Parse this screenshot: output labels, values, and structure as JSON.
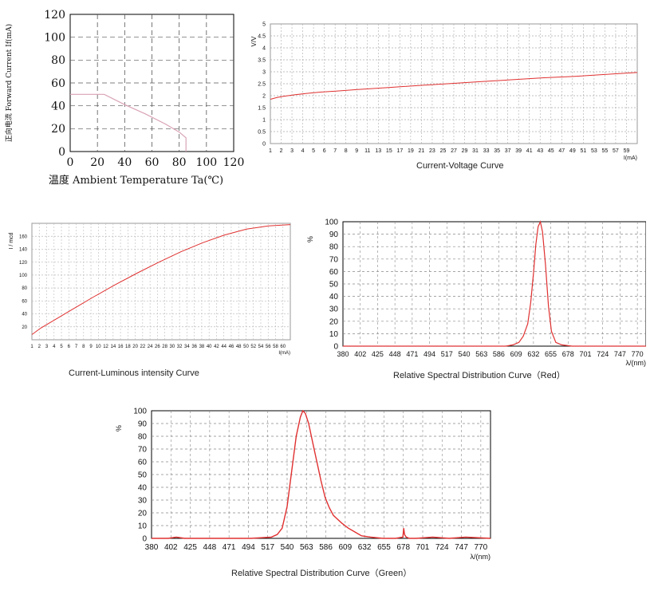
{
  "chart_data": [
    {
      "id": "derating",
      "type": "line",
      "title": "",
      "xlabel": "温度 Ambient Temperature Ta(℃)",
      "ylabel": "正向电流 Forward Current If(mA)",
      "xlim": [
        0,
        120
      ],
      "ylim": [
        0,
        120
      ],
      "xticks": [
        "0",
        "20",
        "40",
        "60",
        "80",
        "100",
        "120"
      ],
      "yticks": [
        "0",
        "20",
        "40",
        "60",
        "80",
        "100",
        "120"
      ],
      "grid": "dashed",
      "line_color": "#d9a3b5",
      "x": [
        0,
        25,
        40,
        55,
        70,
        80,
        85,
        85
      ],
      "y": [
        50,
        50,
        41,
        33,
        24,
        17,
        12,
        0
      ]
    },
    {
      "id": "iv",
      "type": "line",
      "title": "Current-Voltage Curve",
      "xlabel": "I(mA)",
      "ylabel": "V/V",
      "xlim": [
        1,
        60
      ],
      "ylim": [
        0,
        5
      ],
      "xticks": [
        "1",
        "2",
        "3",
        "4",
        "5",
        "6",
        "7",
        "8",
        "9",
        "11",
        "13",
        "15",
        "17",
        "19",
        "21",
        "23",
        "25",
        "27",
        "29",
        "31",
        "33",
        "35",
        "37",
        "39",
        "41",
        "43",
        "45",
        "47",
        "49",
        "51",
        "53",
        "55",
        "57",
        "59"
      ],
      "yticks": [
        "0",
        "0.5",
        "1",
        "1.5",
        "2",
        "2.5",
        "3",
        "3.5",
        "4",
        "4.5",
        "5"
      ],
      "grid": "dashed",
      "line_color": "#e03030",
      "x": [
        1,
        2,
        3,
        5,
        7,
        9,
        12,
        15,
        20,
        25,
        30,
        35,
        40,
        45,
        50,
        55,
        60
      ],
      "y": [
        1.85,
        1.92,
        1.97,
        2.04,
        2.1,
        2.15,
        2.2,
        2.26,
        2.34,
        2.43,
        2.51,
        2.59,
        2.67,
        2.75,
        2.81,
        2.89,
        2.97
      ]
    },
    {
      "id": "iiv",
      "type": "line",
      "title": "Current-Luminous intensity Curve",
      "xlabel": "I(mA)",
      "ylabel": "I / mcd",
      "xlim": [
        1,
        60
      ],
      "ylim": [
        0,
        180
      ],
      "xticks": [
        "1",
        "2",
        "3",
        "4",
        "5",
        "6",
        "7",
        "8",
        "9",
        "10",
        "12",
        "14",
        "16",
        "18",
        "20",
        "22",
        "24",
        "26",
        "28",
        "30",
        "32",
        "34",
        "36",
        "38",
        "40",
        "42",
        "44",
        "46",
        "48",
        "50",
        "52",
        "54",
        "56",
        "58",
        "60"
      ],
      "yticks": [
        "20",
        "40",
        "60",
        "80",
        "100",
        "120",
        "140",
        "160"
      ],
      "grid": "dashed",
      "line_color": "#e03030",
      "x": [
        1,
        3,
        6,
        10,
        15,
        20,
        25,
        30,
        35,
        40,
        45,
        50,
        55,
        60
      ],
      "y": [
        8,
        18,
        30,
        46,
        66,
        85,
        103,
        120,
        136,
        150,
        162,
        171,
        176,
        178
      ]
    },
    {
      "id": "spec_red",
      "type": "line",
      "title": "Relative Spectral Distribution Curve（Red）",
      "xlabel": "λ/(nm)",
      "ylabel": "%",
      "xlim": [
        380,
        790
      ],
      "ylim": [
        0,
        100
      ],
      "xticks": [
        "380",
        "402",
        "425",
        "448",
        "471",
        "494",
        "517",
        "540",
        "563",
        "586",
        "609",
        "632",
        "655",
        "678",
        "701",
        "724",
        "747",
        "770"
      ],
      "yticks": [
        "0",
        "10",
        "20",
        "30",
        "40",
        "50",
        "60",
        "70",
        "80",
        "90",
        "100"
      ],
      "grid": "dashed",
      "line_color": "#e03030",
      "x": [
        380,
        600,
        610,
        618,
        624,
        630,
        634,
        638,
        641,
        644,
        647,
        650,
        654,
        658,
        662,
        668,
        676,
        690,
        790
      ],
      "y": [
        0,
        0,
        1,
        3,
        8,
        18,
        35,
        60,
        82,
        96,
        100,
        92,
        65,
        32,
        12,
        3,
        1,
        0,
        0
      ]
    },
    {
      "id": "spec_green",
      "type": "line",
      "title": "Relative Spectral Distribution Curve（Green）",
      "xlabel": "λ/(nm)",
      "ylabel": "%",
      "xlim": [
        380,
        790
      ],
      "ylim": [
        0,
        100
      ],
      "xticks": [
        "380",
        "402",
        "425",
        "448",
        "471",
        "494",
        "517",
        "540",
        "563",
        "586",
        "609",
        "632",
        "655",
        "678",
        "701",
        "724",
        "747",
        "770"
      ],
      "yticks": [
        "0",
        "10",
        "20",
        "30",
        "40",
        "50",
        "60",
        "70",
        "80",
        "90",
        "100"
      ],
      "grid": "dashed",
      "line_color": "#e03030",
      "x": [
        380,
        400,
        410,
        420,
        440,
        500,
        525,
        532,
        538,
        544,
        550,
        555,
        560,
        563,
        566,
        570,
        575,
        580,
        585,
        590,
        595,
        600,
        605,
        610,
        618,
        626,
        634,
        645,
        660,
        675,
        684,
        685,
        686,
        688,
        692,
        700,
        720,
        740,
        760,
        790
      ],
      "y": [
        0,
        0,
        1,
        0,
        0,
        0,
        1,
        3,
        8,
        25,
        55,
        80,
        95,
        100,
        98,
        90,
        75,
        60,
        45,
        32,
        24,
        18,
        15,
        12,
        8,
        5,
        2,
        1,
        0,
        0,
        1,
        8,
        3,
        1,
        0,
        0,
        1,
        0,
        1,
        0
      ]
    }
  ]
}
